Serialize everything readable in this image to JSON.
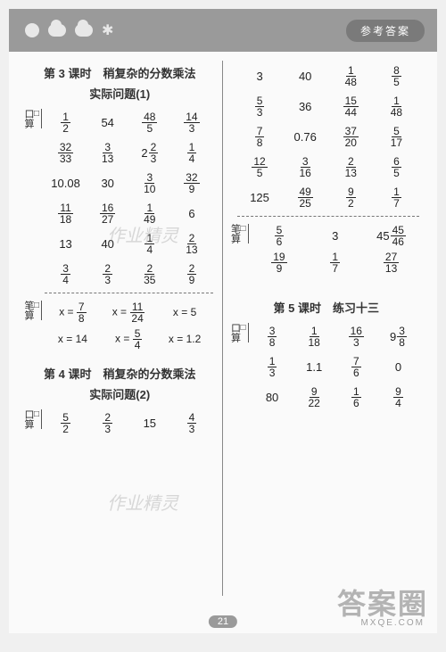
{
  "header": {
    "badge_text": "参考答案"
  },
  "page_number": "21",
  "left_column": {
    "lesson3": {
      "title_line1": "第 3 课时　稍复杂的分数乘法",
      "title_line2": "实际问题(1)",
      "kousuan_label": "口算",
      "rows": [
        [
          {
            "t": "frac",
            "n": "1",
            "d": "2"
          },
          {
            "t": "int",
            "v": "54"
          },
          {
            "t": "frac",
            "n": "48",
            "d": "5"
          },
          {
            "t": "frac",
            "n": "14",
            "d": "3"
          }
        ],
        [
          {
            "t": "frac",
            "n": "32",
            "d": "33"
          },
          {
            "t": "frac",
            "n": "3",
            "d": "13"
          },
          {
            "t": "mixed",
            "w": "2",
            "n": "2",
            "d": "3"
          },
          {
            "t": "frac",
            "n": "1",
            "d": "4"
          }
        ],
        [
          {
            "t": "int",
            "v": "10.08"
          },
          {
            "t": "int",
            "v": "30"
          },
          {
            "t": "frac",
            "n": "3",
            "d": "10"
          },
          {
            "t": "frac",
            "n": "32",
            "d": "9"
          }
        ],
        [
          {
            "t": "frac",
            "n": "11",
            "d": "18"
          },
          {
            "t": "frac",
            "n": "16",
            "d": "27"
          },
          {
            "t": "frac",
            "n": "1",
            "d": "49"
          },
          {
            "t": "int",
            "v": "6"
          }
        ],
        [
          {
            "t": "int",
            "v": "13"
          },
          {
            "t": "int",
            "v": "40"
          },
          {
            "t": "frac",
            "n": "1",
            "d": "4"
          },
          {
            "t": "frac",
            "n": "2",
            "d": "13"
          }
        ],
        [
          {
            "t": "frac",
            "n": "3",
            "d": "4"
          },
          {
            "t": "frac",
            "n": "2",
            "d": "3"
          },
          {
            "t": "frac",
            "n": "2",
            "d": "35"
          },
          {
            "t": "frac",
            "n": "2",
            "d": "9"
          }
        ]
      ],
      "bisuan_label": "笔算",
      "bi_rows": [
        [
          {
            "t": "eqfrac",
            "v": "x =",
            "n": "7",
            "d": "8"
          },
          {
            "t": "eqfrac",
            "v": "x =",
            "n": "11",
            "d": "24"
          },
          {
            "t": "eq",
            "v": "x = 5"
          }
        ],
        [
          {
            "t": "eq",
            "v": "x = 14"
          },
          {
            "t": "eqfrac",
            "v": "x =",
            "n": "5",
            "d": "4"
          },
          {
            "t": "eq",
            "v": "x = 1.2"
          }
        ]
      ]
    },
    "lesson4": {
      "title_line1": "第 4 课时　稍复杂的分数乘法",
      "title_line2": "实际问题(2)",
      "kousuan_label": "口算",
      "rows": [
        [
          {
            "t": "frac",
            "n": "5",
            "d": "2"
          },
          {
            "t": "frac",
            "n": "2",
            "d": "3"
          },
          {
            "t": "int",
            "v": "15"
          },
          {
            "t": "frac",
            "n": "4",
            "d": "3"
          }
        ]
      ]
    }
  },
  "right_column": {
    "cont_rows": [
      [
        {
          "t": "int",
          "v": "3"
        },
        {
          "t": "int",
          "v": "40"
        },
        {
          "t": "frac",
          "n": "1",
          "d": "48"
        },
        {
          "t": "frac",
          "n": "8",
          "d": "5"
        }
      ],
      [
        {
          "t": "frac",
          "n": "5",
          "d": "3"
        },
        {
          "t": "int",
          "v": "36"
        },
        {
          "t": "frac",
          "n": "15",
          "d": "44"
        },
        {
          "t": "frac",
          "n": "1",
          "d": "48"
        }
      ],
      [
        {
          "t": "frac",
          "n": "7",
          "d": "8"
        },
        {
          "t": "int",
          "v": "0.76"
        },
        {
          "t": "frac",
          "n": "37",
          "d": "20"
        },
        {
          "t": "frac",
          "n": "5",
          "d": "17"
        }
      ],
      [
        {
          "t": "frac",
          "n": "12",
          "d": "5"
        },
        {
          "t": "frac",
          "n": "3",
          "d": "16"
        },
        {
          "t": "frac",
          "n": "2",
          "d": "13"
        },
        {
          "t": "frac",
          "n": "6",
          "d": "5"
        }
      ],
      [
        {
          "t": "int",
          "v": "125"
        },
        {
          "t": "frac",
          "n": "49",
          "d": "25"
        },
        {
          "t": "frac",
          "n": "9",
          "d": "2"
        },
        {
          "t": "frac",
          "n": "1",
          "d": "7"
        }
      ]
    ],
    "bisuan_label": "笔算",
    "bi_rows": [
      [
        {
          "t": "frac",
          "n": "5",
          "d": "6"
        },
        {
          "t": "int",
          "v": "3"
        },
        {
          "t": "mixed",
          "w": "45",
          "n": "45",
          "d": "46"
        }
      ],
      [
        {
          "t": "frac",
          "n": "19",
          "d": "9"
        },
        {
          "t": "frac",
          "n": "1",
          "d": "7"
        },
        {
          "t": "frac",
          "n": "27",
          "d": "13"
        }
      ]
    ],
    "lesson5": {
      "title": "第 5 课时　练习十三",
      "kousuan_label": "口算",
      "rows": [
        [
          {
            "t": "frac",
            "n": "3",
            "d": "8"
          },
          {
            "t": "frac",
            "n": "1",
            "d": "18"
          },
          {
            "t": "frac",
            "n": "16",
            "d": "3"
          },
          {
            "t": "mixed",
            "w": "9",
            "n": "3",
            "d": "8"
          }
        ],
        [
          {
            "t": "frac",
            "n": "1",
            "d": "3"
          },
          {
            "t": "int",
            "v": "1.1"
          },
          {
            "t": "frac",
            "n": "7",
            "d": "6"
          },
          {
            "t": "int",
            "v": "0"
          }
        ],
        [
          {
            "t": "int",
            "v": "80"
          },
          {
            "t": "frac",
            "n": "9",
            "d": "22"
          },
          {
            "t": "frac",
            "n": "1",
            "d": "6"
          },
          {
            "t": "frac",
            "n": "9",
            "d": "4"
          }
        ]
      ]
    }
  },
  "watermarks": {
    "big": "答案圈",
    "small": "MXQE.COM",
    "mid1": "作业精灵",
    "mid2": "作业精灵"
  }
}
